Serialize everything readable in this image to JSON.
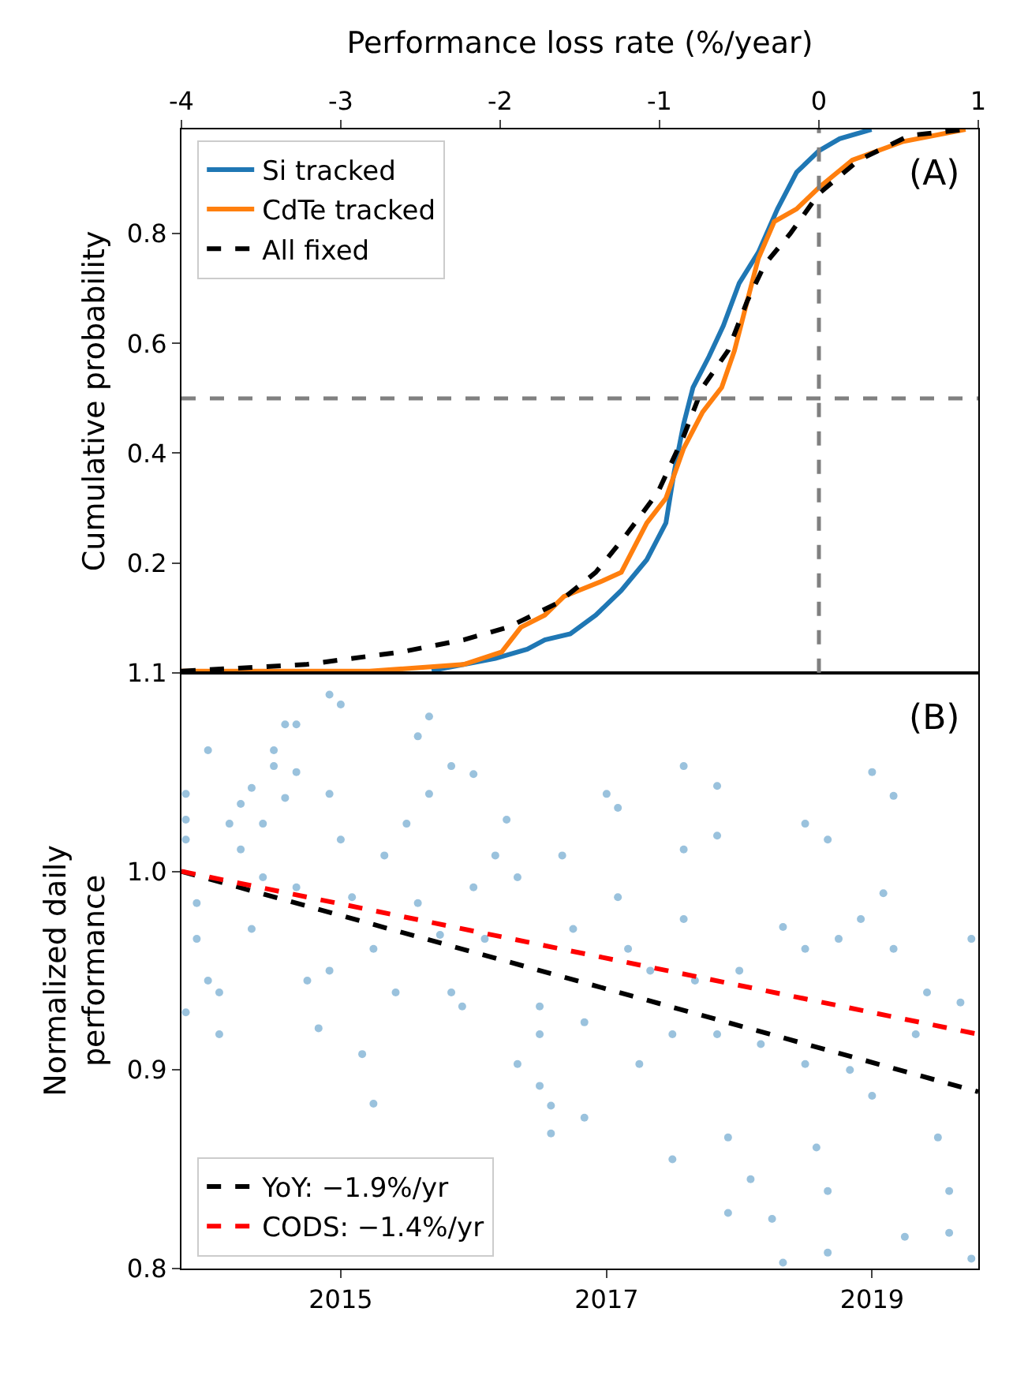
{
  "chart_data": [
    {
      "type": "line",
      "xlabel": "Performance loss rate (%/year)",
      "ylabel": "Cumulative probability",
      "xlim": [
        -4,
        1
      ],
      "xticks": [
        -4,
        -3,
        -2,
        -1,
        0,
        1
      ],
      "ylim": [
        0,
        0.99
      ],
      "yticks": [
        0.2,
        0.4,
        0.6,
        0.8
      ],
      "grid": false,
      "legend": "top left",
      "annotations": [
        "(A)"
      ],
      "ref_lines": [
        {
          "axis": "y",
          "value": 0.5,
          "color": "#808080",
          "line_style": "dashed"
        },
        {
          "axis": "x",
          "value": 0,
          "color": "#808080",
          "line_style": "dashed"
        }
      ],
      "series": [
        {
          "name": "Si tracked",
          "color": "#1f77b4",
          "line_style": "solid",
          "x": [
            -2.43,
            -2.03,
            -1.83,
            -1.72,
            -1.56,
            -1.4,
            -1.24,
            -1.08,
            -0.96,
            -0.91,
            -0.85,
            -0.79,
            -0.69,
            -0.6,
            -0.5,
            -0.38,
            -0.26,
            -0.14,
            0.0,
            0.13,
            0.33
          ],
          "values": [
            0.004,
            0.026,
            0.043,
            0.06,
            0.071,
            0.105,
            0.15,
            0.206,
            0.273,
            0.363,
            0.452,
            0.52,
            0.576,
            0.632,
            0.71,
            0.766,
            0.845,
            0.912,
            0.951,
            0.973,
            0.99
          ]
        },
        {
          "name": "CdTe tracked",
          "color": "#ff7f0e",
          "line_style": "solid",
          "x": [
            -4,
            -2.82,
            -2.23,
            -1.99,
            -1.87,
            -1.72,
            -1.6,
            -1.36,
            -1.24,
            -1.16,
            -1.08,
            -0.96,
            -0.85,
            -0.73,
            -0.61,
            -0.53,
            -0.45,
            -0.38,
            -0.28,
            -0.14,
            0.0,
            0.21,
            0.53,
            0.92
          ],
          "values": [
            0.003,
            0.003,
            0.015,
            0.038,
            0.083,
            0.105,
            0.139,
            0.167,
            0.183,
            0.228,
            0.273,
            0.318,
            0.408,
            0.475,
            0.52,
            0.587,
            0.677,
            0.755,
            0.822,
            0.845,
            0.884,
            0.934,
            0.968,
            0.99
          ]
        },
        {
          "name": "All fixed",
          "color": "#000000",
          "line_style": "dashed",
          "x": [
            -4,
            -3.22,
            -2.62,
            -2.23,
            -1.95,
            -1.64,
            -1.4,
            -1.21,
            -1.01,
            -0.85,
            -0.73,
            -0.57,
            -0.45,
            -0.34,
            -0.18,
            0.0,
            0.25,
            0.57,
            0.92
          ],
          "values": [
            0.003,
            0.015,
            0.038,
            0.06,
            0.083,
            0.127,
            0.183,
            0.251,
            0.329,
            0.43,
            0.52,
            0.587,
            0.677,
            0.744,
            0.8,
            0.873,
            0.934,
            0.979,
            0.99
          ]
        }
      ]
    },
    {
      "type": "scatter",
      "ylabel": "Normalized daily\nperformance",
      "xlim": [
        "2013-10-20",
        "2019-10-20"
      ],
      "xticks": [
        {
          "value": "2015-01-01",
          "label": "2015"
        },
        {
          "value": "2017-01-01",
          "label": "2017"
        },
        {
          "value": "2019-01-01",
          "label": "2019"
        }
      ],
      "ylim": [
        0.8,
        1.1
      ],
      "yticks": [
        0.8,
        0.9,
        {
          "value": 1,
          "label": "1.0"
        },
        1.1
      ],
      "grid": false,
      "legend": "bottom left",
      "annotations": [
        "(B)"
      ],
      "series": [
        {
          "color": "#1f77b4",
          "marker": "circle",
          "x": [
            "2013-11",
            "2013-11",
            "2013-11",
            "2013-12",
            "2013-12",
            "2014-01",
            "2013-11",
            "2014-01",
            "2014-02",
            "2014-02",
            "2014-03",
            "2014-04",
            "2014-04",
            "2014-05",
            "2014-05",
            "2014-06",
            "2014-06",
            "2014-07",
            "2014-07",
            "2014-08",
            "2014-08",
            "2014-09",
            "2014-09",
            "2014-09",
            "2014-10",
            "2014-11",
            "2014-12",
            "2014-12",
            "2015-01",
            "2015-01",
            "2014-12",
            "2015-02",
            "2015-03",
            "2015-04",
            "2015-04",
            "2015-05",
            "2015-06",
            "2015-07",
            "2015-08",
            "2015-08",
            "2015-09",
            "2015-09",
            "2015-10",
            "2015-11",
            "2015-11",
            "2015-12",
            "2016-01",
            "2016-01",
            "2016-02",
            "2016-03",
            "2016-04",
            "2016-05",
            "2016-05",
            "2016-07",
            "2016-07",
            "2016-07",
            "2016-08",
            "2016-08",
            "2016-09",
            "2016-10",
            "2016-11",
            "2016-11",
            "2017-01",
            "2017-02",
            "2017-02",
            "2017-03",
            "2017-04",
            "2017-05",
            "2017-07",
            "2017-07",
            "2017-08",
            "2017-08",
            "2017-08",
            "2017-09",
            "2017-11",
            "2017-11",
            "2017-11",
            "2017-12",
            "2017-12",
            "2018-01",
            "2018-02",
            "2018-03",
            "2018-04",
            "2018-05",
            "2018-05",
            "2018-07",
            "2018-07",
            "2018-07",
            "2018-08",
            "2018-09",
            "2018-09",
            "2018-09",
            "2018-10",
            "2018-11",
            "2018-12",
            "2019-01",
            "2019-01",
            "2019-02",
            "2019-03",
            "2019-03",
            "2019-04",
            "2019-05",
            "2019-06",
            "2019-07",
            "2019-08",
            "2019-08",
            "2019-09",
            "2019-10",
            "2019-10"
          ],
          "values": [
            1.039,
            1.026,
            1.016,
            0.984,
            0.966,
            0.945,
            0.929,
            1.061,
            0.939,
            0.918,
            1.024,
            1.034,
            1.011,
            1.042,
            0.971,
            0.997,
            1.024,
            1.053,
            1.061,
            1.074,
            1.037,
            1.05,
            1.074,
            0.992,
            0.945,
            0.921,
            1.089,
            1.039,
            1.084,
            1.016,
            0.95,
            0.987,
            0.908,
            0.883,
            0.961,
            1.008,
            0.939,
            1.024,
            0.984,
            1.068,
            1.078,
            1.039,
            0.968,
            0.939,
            1.053,
            0.932,
            1.049,
            0.992,
            0.966,
            1.008,
            1.026,
            0.903,
            0.997,
            0.932,
            0.918,
            0.892,
            0.882,
            0.868,
            1.008,
            0.971,
            0.924,
            0.876,
            1.039,
            1.032,
            0.987,
            0.961,
            0.903,
            0.95,
            0.918,
            0.855,
            1.053,
            1.011,
            0.976,
            0.945,
            1.043,
            1.018,
            0.918,
            0.866,
            0.828,
            0.95,
            0.845,
            0.913,
            0.825,
            0.803,
            0.972,
            0.961,
            1.024,
            0.903,
            0.861,
            0.839,
            0.808,
            1.016,
            0.966,
            0.9,
            0.976,
            0.887,
            1.05,
            0.989,
            1.038,
            0.961,
            0.816,
            0.918,
            0.939,
            0.866,
            0.839,
            0.818,
            0.934,
            0.805,
            0.966
          ]
        },
        {
          "name": "YoY: −1.9%/yr",
          "type": "line",
          "color": "#000000",
          "line_style": "dashed",
          "marker": "none",
          "x": [
            "2013-10-20",
            "2019-10-20"
          ],
          "values": [
            1.0,
            0.889
          ]
        },
        {
          "name": "CODS: −1.4%/yr",
          "type": "line",
          "color": "#ff0000",
          "line_style": "dashed",
          "marker": "none",
          "x": [
            "2013-10-20",
            "2019-10-20"
          ],
          "values": [
            1.0,
            0.918
          ]
        }
      ]
    }
  ]
}
